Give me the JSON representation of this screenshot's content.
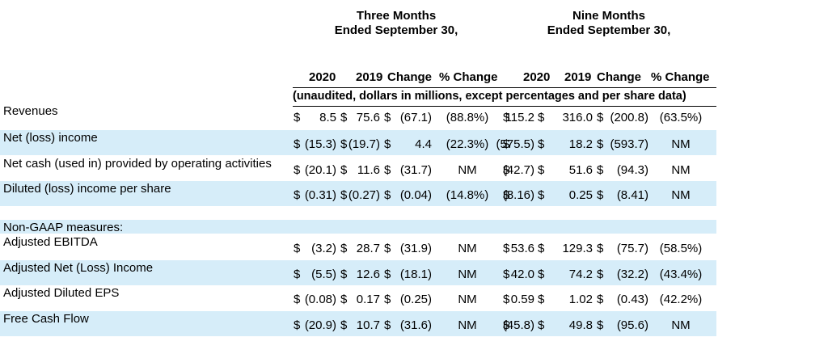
{
  "header": {
    "three_months_line1": "Three Months",
    "three_months_line2": "Ended September 30,",
    "nine_months_line1": "Nine Months",
    "nine_months_line2": "Ended September 30,"
  },
  "columns": {
    "q_2020": "2020",
    "q_2019": "2019",
    "q_change": "Change",
    "q_pct_change": "% Change",
    "n_2020": "2020",
    "n_2019": "2019",
    "n_change": "Change",
    "n_pct_change": "% Change"
  },
  "subheader": "(unaudited, dollars in millions, except percentages and per share data)",
  "rows": [
    {
      "label": "Revenues",
      "q_cur": "8.5",
      "q_prev": "75.6",
      "q_chg": "(67.1)",
      "q_pct": "(88.8%)",
      "n_cur": "115.2",
      "n_prev": "316.0",
      "n_chg": "(200.8)",
      "n_pct": "(63.5%)"
    },
    {
      "label": "Net (loss) income",
      "q_cur": "(15.3)",
      "q_prev": "(19.7)",
      "q_chg": "4.4",
      "q_pct": "(22.3%)",
      "n_cur": "(575.5)",
      "n_prev": "18.2",
      "n_chg": "(593.7)",
      "n_pct": "NM"
    },
    {
      "label": "Net cash (used in) provided by operating activities",
      "q_cur": "(20.1)",
      "q_prev": "11.6",
      "q_chg": "(31.7)",
      "q_pct": "NM",
      "n_cur": "(42.7)",
      "n_prev": "51.6",
      "n_chg": "(94.3)",
      "n_pct": "NM"
    },
    {
      "label": "Diluted (loss) income per share",
      "q_cur": "(0.31)",
      "q_prev": "(0.27)",
      "q_chg": "(0.04)",
      "q_pct": "(14.8%)",
      "n_cur": "(8.16)",
      "n_prev": "0.25",
      "n_chg": "(8.41)",
      "n_pct": "NM"
    },
    {
      "label": "Adjusted EBITDA",
      "q_cur": "(3.2)",
      "q_prev": "28.7",
      "q_chg": "(31.9)",
      "q_pct": "NM",
      "n_cur": "53.6",
      "n_prev": "129.3",
      "n_chg": "(75.7)",
      "n_pct": "(58.5%)"
    },
    {
      "label": "Adjusted Net (Loss) Income",
      "q_cur": "(5.5)",
      "q_prev": "12.6",
      "q_chg": "(18.1)",
      "q_pct": "NM",
      "n_cur": "42.0",
      "n_prev": "74.2",
      "n_chg": "(32.2)",
      "n_pct": "(43.4%)"
    },
    {
      "label": "Adjusted Diluted EPS",
      "q_cur": "(0.08)",
      "q_prev": "0.17",
      "q_chg": "(0.25)",
      "q_pct": "NM",
      "n_cur": "0.59",
      "n_prev": "1.02",
      "n_chg": "(0.43)",
      "n_pct": "(42.2%)"
    },
    {
      "label": "Free Cash Flow",
      "q_cur": "(20.9)",
      "q_prev": "10.7",
      "q_chg": "(31.6)",
      "q_pct": "NM",
      "n_cur": "(45.8)",
      "n_prev": "49.8",
      "n_chg": "(95.6)",
      "n_pct": "NM"
    }
  ],
  "non_gaap_label": "Non-GAAP measures:",
  "currency_symbol": "$",
  "colors": {
    "band": "#d6edf9"
  }
}
